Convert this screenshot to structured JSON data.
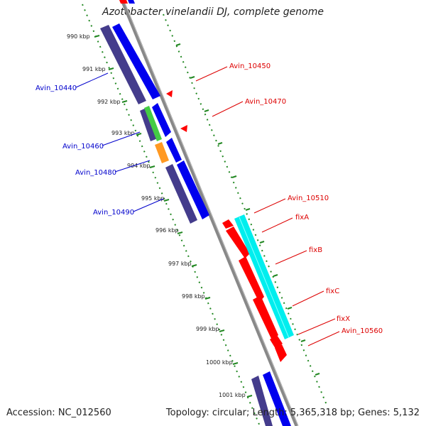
{
  "title": "Azotobacter vinelandii DJ, complete genome",
  "footer": {
    "accession": "Accession: NC_012560",
    "summary": "Topology: circular; Length: 5,365,318 bp; Genes: 5,132"
  },
  "colors": {
    "backbone": "#888888",
    "ruler": "#228822",
    "arrow": "#ff0000",
    "forward_gene": "#0000ee",
    "reverse_gene": "#443c8c",
    "green_gene": "#44cc44",
    "orange_gene": "#ff9922",
    "red_gene": "#ff0000",
    "cyan_gene": "#00eeee",
    "label_red": "#dd0000",
    "label_blue": "#0000cc"
  },
  "ruler_labels": [
    "990 kbp",
    "991 kbp",
    "992 kbp",
    "993 kbp",
    "994 kbp",
    "995 kbp",
    "996 kbp",
    "997 kbp",
    "998 kbp",
    "999 kbp",
    "1000 kbp",
    "1001 kbp"
  ],
  "gene_labels_right": [
    "Avin_10450",
    "Avin_10470",
    "Avin_10510",
    "fixA",
    "fixB",
    "fixC",
    "fixX",
    "Avin_10560"
  ],
  "gene_labels_left": [
    "Avin_10440",
    "Avin_10460",
    "Avin_10480",
    "Avin_10490"
  ]
}
